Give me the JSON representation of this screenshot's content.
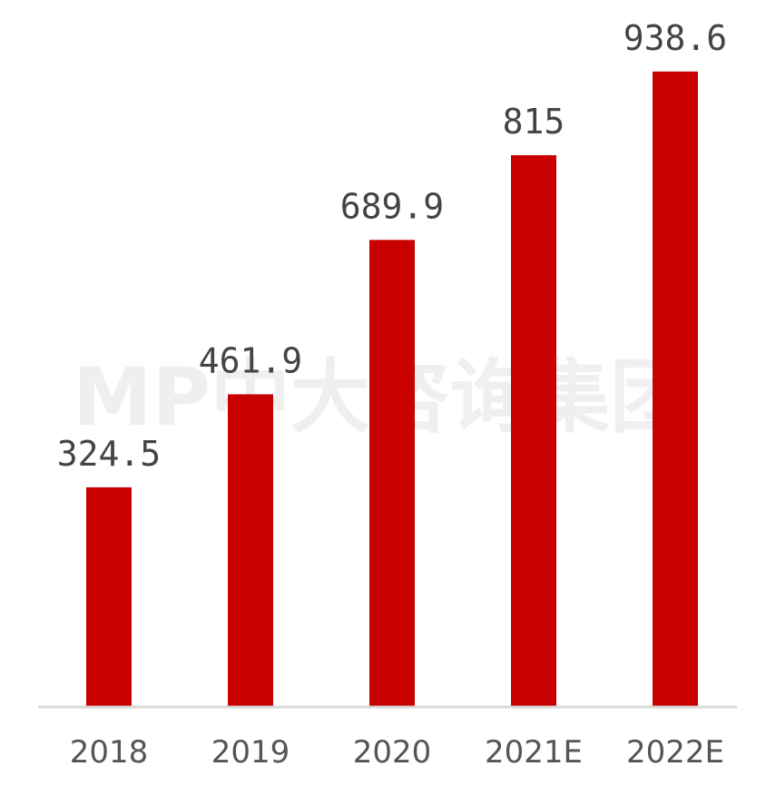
{
  "chart_data": {
    "type": "bar",
    "categories": [
      "2018",
      "2019",
      "2020",
      "2021E",
      "2022E"
    ],
    "values": [
      324.5,
      461.9,
      689.9,
      815,
      938.6
    ],
    "value_labels": [
      "324.5",
      "461.9",
      "689.9",
      "815",
      "938.6"
    ],
    "title": "",
    "xlabel": "",
    "ylabel": "",
    "ylim": [
      0,
      1000
    ],
    "grid": false,
    "legend": "none",
    "bar_color": "#c90000",
    "axis_color": "#d9d9d9"
  },
  "watermark": "MP中大咨询集团"
}
